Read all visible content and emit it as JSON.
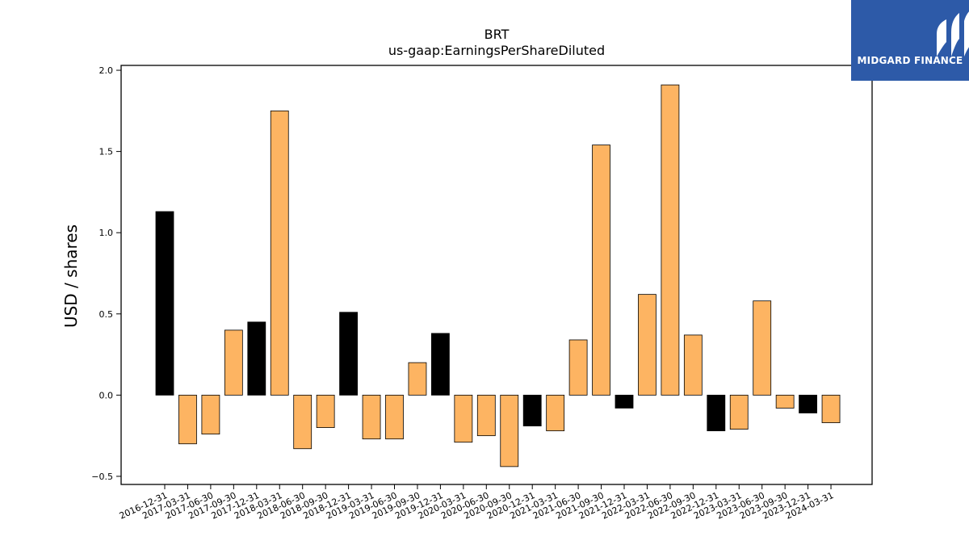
{
  "brand": {
    "name": "MIDGARD FINANCE",
    "color": "#2d5aa8"
  },
  "chart_data": {
    "type": "bar",
    "title": "BRT",
    "subtitle": "us-gaap:EarningsPerShareDiluted",
    "xlabel": "",
    "ylabel": "USD / shares",
    "ylim": [
      -0.55,
      2.03
    ],
    "yticks": [
      -0.5,
      0.0,
      0.5,
      1.0,
      1.5,
      2.0
    ],
    "ytick_labels": [
      "−0.5",
      "0.0",
      "0.5",
      "1.0",
      "1.5",
      "2.0"
    ],
    "grid": false,
    "colors": {
      "annual": "#000000",
      "quarterly": "#fdb462"
    },
    "categories": [
      "2016-12-31",
      "2017-03-31",
      "2017-06-30",
      "2017-09-30",
      "2017-12-31",
      "2018-03-31",
      "2018-06-30",
      "2018-09-30",
      "2018-12-31",
      "2019-03-31",
      "2019-06-30",
      "2019-09-30",
      "2019-12-31",
      "2020-03-31",
      "2020-06-30",
      "2020-09-30",
      "2020-12-31",
      "2021-03-31",
      "2021-06-30",
      "2021-09-30",
      "2021-12-31",
      "2022-03-31",
      "2022-06-30",
      "2022-09-30",
      "2022-12-31",
      "2023-03-31",
      "2023-06-30",
      "2023-09-30",
      "2023-12-31",
      "2024-03-31"
    ],
    "values": [
      1.13,
      -0.3,
      -0.24,
      0.4,
      0.45,
      1.75,
      -0.33,
      -0.2,
      0.51,
      -0.27,
      -0.27,
      0.2,
      0.38,
      -0.29,
      -0.25,
      -0.44,
      -0.19,
      -0.22,
      0.34,
      1.54,
      -0.08,
      0.62,
      1.91,
      0.37,
      -0.22,
      -0.21,
      0.58,
      -0.08,
      -0.11,
      -0.17
    ],
    "bar_kind": [
      "annual",
      "quarterly",
      "quarterly",
      "quarterly",
      "annual",
      "quarterly",
      "quarterly",
      "quarterly",
      "annual",
      "quarterly",
      "quarterly",
      "quarterly",
      "annual",
      "quarterly",
      "quarterly",
      "quarterly",
      "annual",
      "quarterly",
      "quarterly",
      "quarterly",
      "annual",
      "quarterly",
      "quarterly",
      "quarterly",
      "annual",
      "quarterly",
      "quarterly",
      "quarterly",
      "annual",
      "quarterly"
    ]
  }
}
